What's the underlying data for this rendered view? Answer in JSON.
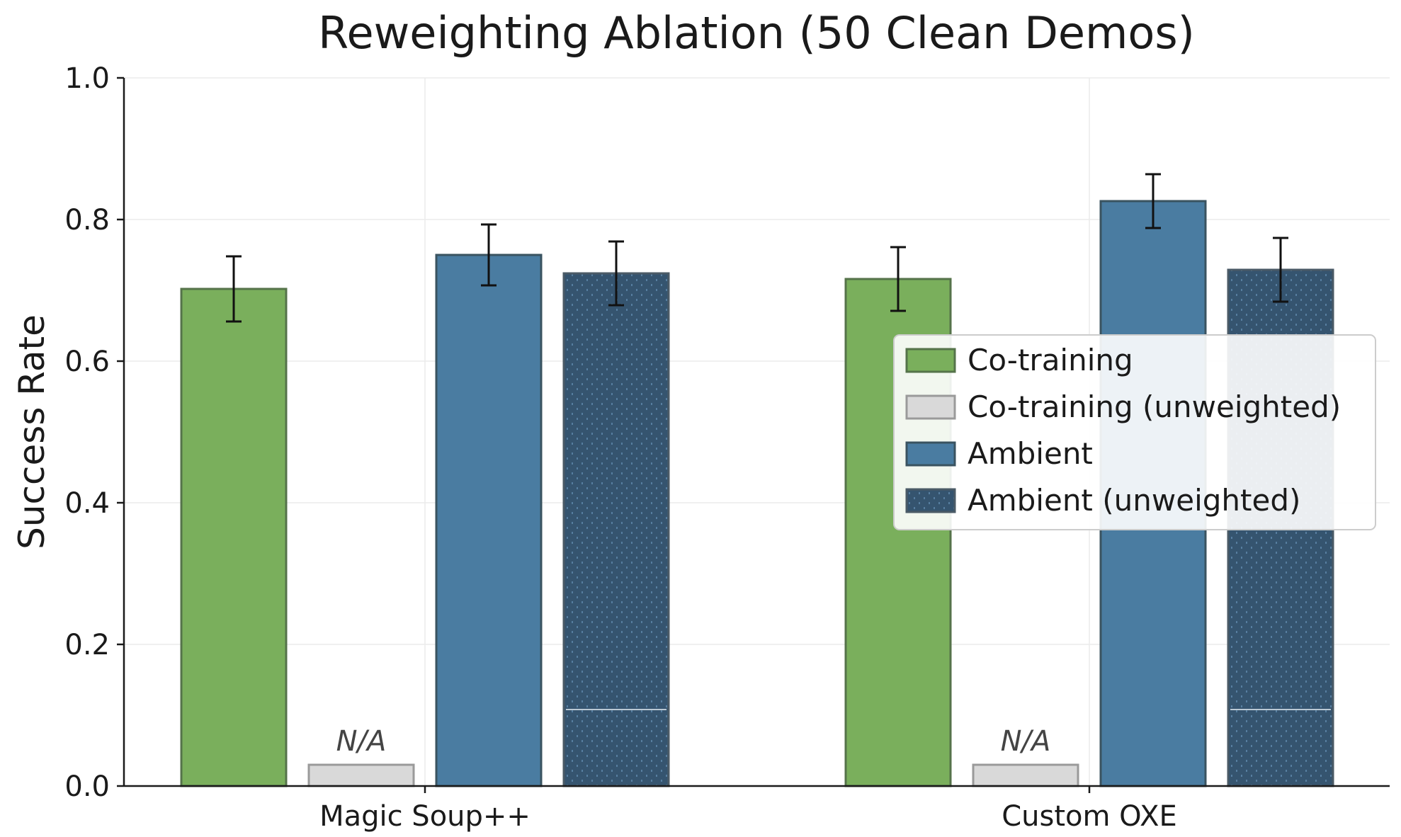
{
  "chart_data": {
    "type": "bar",
    "title": "Reweighting Ablation (50 Clean Demos)",
    "xlabel": "",
    "ylabel": "Success Rate",
    "ylim": [
      0,
      1.0
    ],
    "yticks": [
      0.0,
      0.2,
      0.4,
      0.6,
      0.8,
      1.0
    ],
    "ytick_labels": [
      "0.0",
      "0.2",
      "0.4",
      "0.6",
      "0.8",
      "1.0"
    ],
    "grid": true,
    "legend_position": "right",
    "categories": [
      "Magic Soup++",
      "Custom OXE"
    ],
    "na_label": "N/A",
    "series": [
      {
        "name": "Co-training",
        "values": [
          0.702,
          0.716
        ],
        "errors": [
          0.046,
          0.045
        ],
        "color": "#7aaf5c",
        "edge": "#55734a",
        "pattern": "none"
      },
      {
        "name": "Co-training (unweighted)",
        "values": [
          null,
          null
        ],
        "errors": [
          null,
          null
        ],
        "color": "#d9d9d9",
        "edge": "#9a9a9a",
        "pattern": "none",
        "na_display_value": 0.03
      },
      {
        "name": "Ambient",
        "values": [
          0.75,
          0.826
        ],
        "errors": [
          0.043,
          0.038
        ],
        "color": "#4a7ca1",
        "edge": "#3a5360",
        "pattern": "none"
      },
      {
        "name": "Ambient (unweighted)",
        "values": [
          0.724,
          0.729
        ],
        "errors": [
          0.045,
          0.045
        ],
        "color": "#35546f",
        "edge": "#4a5a66",
        "pattern": "dots"
      }
    ]
  }
}
